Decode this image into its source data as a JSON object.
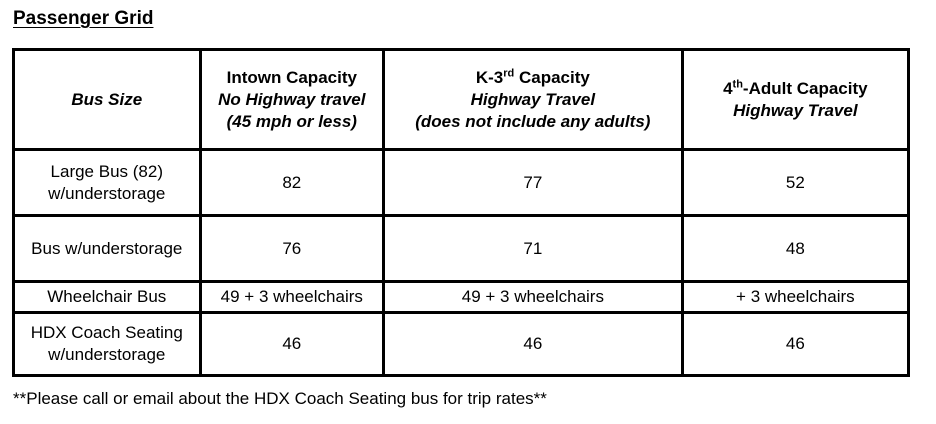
{
  "title": "Passenger Grid",
  "headers": {
    "bus_size": "Bus Size",
    "intown": {
      "name": "Intown Capacity",
      "line2": "No Highway travel",
      "line3": "(45 mph or less)"
    },
    "k3": {
      "name_pre": "K-3",
      "name_sup": "rd",
      "name_post": " Capacity",
      "line2": "Highway Travel",
      "line3": "(does not include any adults)"
    },
    "adult": {
      "name_pre": "4",
      "name_sup": "th",
      "name_post": "-Adult Capacity",
      "line2": "Highway Travel"
    }
  },
  "rows": [
    {
      "bus": [
        "Large Bus (82)",
        "w/understorage"
      ],
      "intown": "82",
      "k3": "77",
      "adult": "52"
    },
    {
      "bus": [
        "Bus w/understorage"
      ],
      "intown": "76",
      "k3": "71",
      "adult": "48"
    },
    {
      "bus": [
        "Wheelchair Bus"
      ],
      "intown": "49 + 3 wheelchairs",
      "k3": "49 + 3 wheelchairs",
      "adult": "+ 3 wheelchairs"
    },
    {
      "bus": [
        "HDX Coach Seating",
        "w/understorage"
      ],
      "intown": "46",
      "k3": "46",
      "adult": "46"
    }
  ],
  "footnote": "**Please call or email about the HDX Coach Seating bus for trip rates**"
}
